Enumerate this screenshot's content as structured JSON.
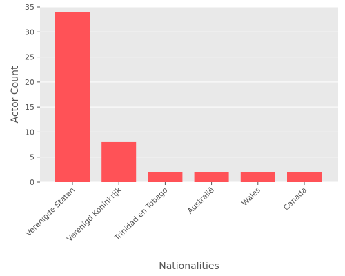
{
  "chart_data": {
    "type": "bar",
    "title": "",
    "xlabel": "Nationalities",
    "ylabel": "Actor Count",
    "categories": [
      "Verenigde Staten",
      "Verenigd Koninkrijk",
      "Trinidad en Tobago",
      "Australië",
      "Wales",
      "Canada"
    ],
    "values": [
      34,
      8,
      2,
      2,
      2,
      2
    ],
    "ylim": [
      0,
      35
    ],
    "yticks": [
      0,
      5,
      10,
      15,
      20,
      25,
      30,
      35
    ],
    "grid": true,
    "legend": "none",
    "colors": {
      "bar": "#ff5257",
      "plot_background": "#e9e9e9",
      "grid": "#ffffff",
      "text": "#555555"
    }
  }
}
